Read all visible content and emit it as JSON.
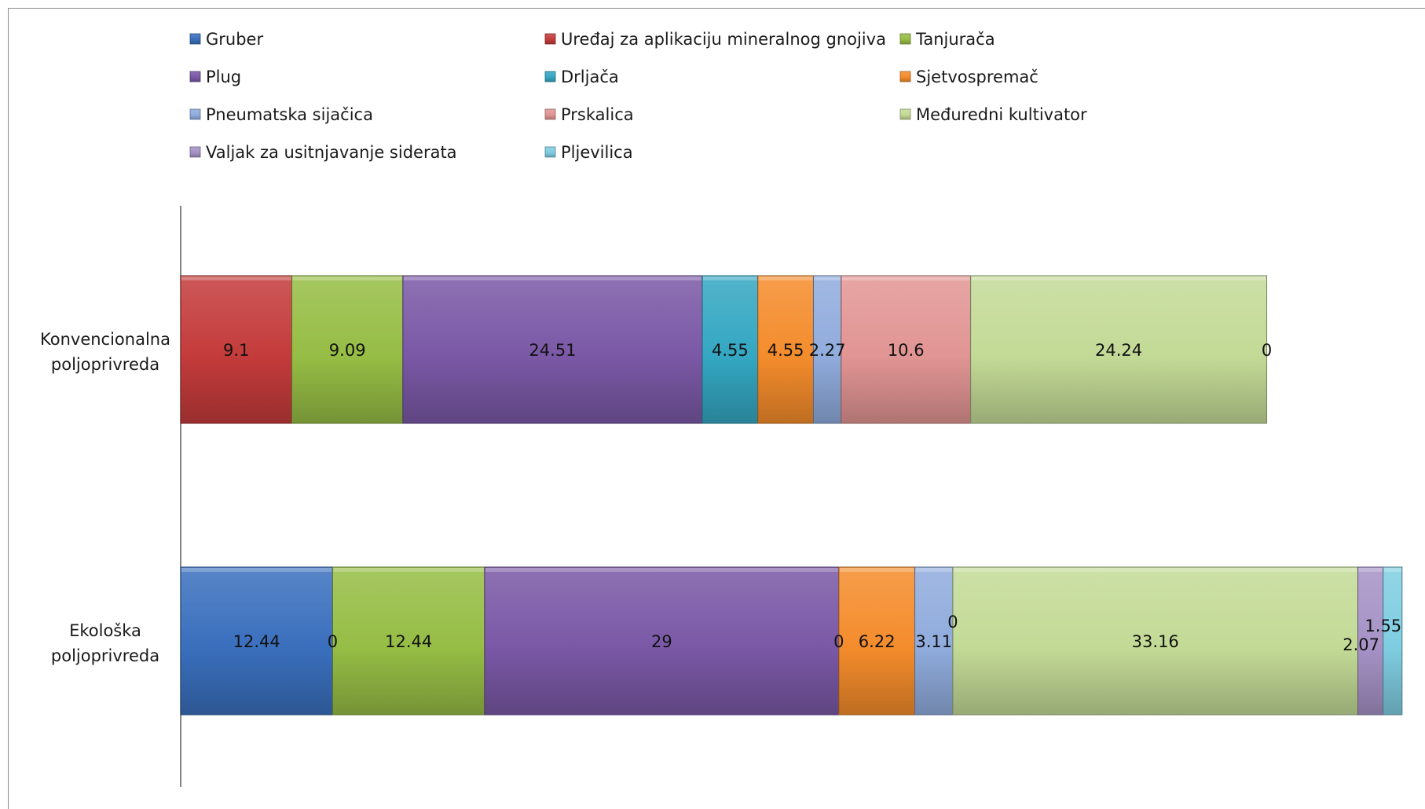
{
  "chart_data": {
    "type": "bar",
    "orientation": "horizontal",
    "stacked": true,
    "title": "",
    "xlabel": "",
    "ylabel": "",
    "xlim": [
      0,
      100
    ],
    "categories": [
      "Konvencionalna poljoprivreda",
      "Ekološka poljoprivreda"
    ],
    "legend_position": "top",
    "series": [
      {
        "name": "Gruber",
        "color": "#3a6fbd",
        "values": [
          0,
          12.44
        ],
        "labels": [
          "",
          "12.44"
        ]
      },
      {
        "name": "Uređaj za aplikaciju mineralnog gnojiva",
        "color": "#c43b3b",
        "values": [
          9.1,
          0
        ],
        "labels": [
          "9.1",
          "0"
        ]
      },
      {
        "name": "Tanjurača",
        "color": "#96bd45",
        "values": [
          9.09,
          12.44
        ],
        "labels": [
          "9.09",
          "12.44"
        ]
      },
      {
        "name": "Plug",
        "color": "#7a58a6",
        "values": [
          24.51,
          29
        ],
        "labels": [
          "24.51",
          "29"
        ]
      },
      {
        "name": "Drljača",
        "color": "#34a7c2",
        "values": [
          4.55,
          0
        ],
        "labels": [
          "4.55",
          "0"
        ]
      },
      {
        "name": "Sjetvospremač",
        "color": "#f48c2c",
        "values": [
          4.55,
          6.22
        ],
        "labels": [
          "4.55",
          "6.22"
        ]
      },
      {
        "name": "Pneumatska sijačica",
        "color": "#90acdd",
        "values": [
          2.27,
          3.11
        ],
        "labels": [
          "2.27",
          "3.11"
        ]
      },
      {
        "name": "Prskalica",
        "color": "#e19594",
        "values": [
          10.6,
          0
        ],
        "labels": [
          "10.6",
          "0"
        ]
      },
      {
        "name": "Međuredni kultivator",
        "color": "#c3da96",
        "values": [
          24.24,
          33.16
        ],
        "labels": [
          "24.24",
          "33.16"
        ]
      },
      {
        "name": "Valjak za usitnjavanje siderata",
        "color": "#a692c6",
        "values": [
          0,
          2.07
        ],
        "labels": [
          "0",
          "2.07"
        ]
      },
      {
        "name": "Pljevilica",
        "color": "#7fcde1",
        "values": [
          0,
          1.55
        ],
        "labels": [
          "",
          "1.55"
        ]
      }
    ]
  }
}
